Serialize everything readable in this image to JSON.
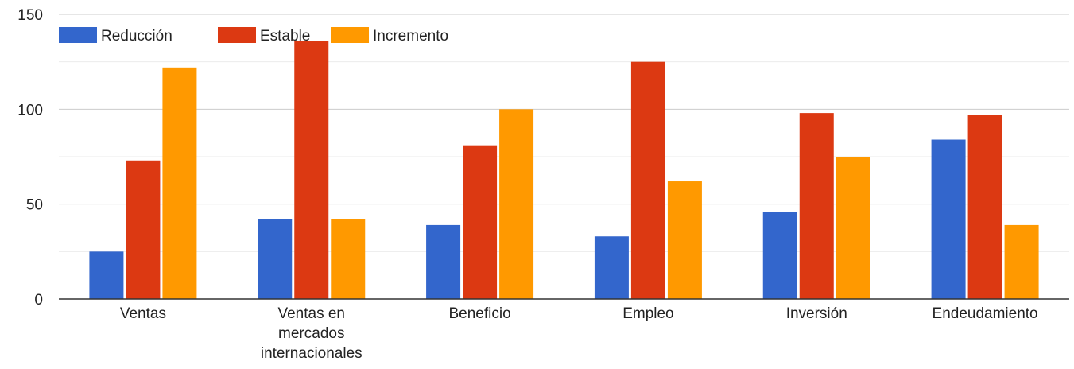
{
  "chart_data": {
    "type": "bar",
    "categories": [
      [
        "Ventas"
      ],
      [
        "Ventas en",
        "mercados",
        "internacionales"
      ],
      [
        "Beneficio"
      ],
      [
        "Empleo"
      ],
      [
        "Inversión"
      ],
      [
        "Endeudamiento"
      ]
    ],
    "series": [
      {
        "name": "Reducción",
        "color": "#3366cc",
        "values": [
          25,
          42,
          39,
          33,
          46,
          84
        ]
      },
      {
        "name": "Estable",
        "color": "#dc3912",
        "values": [
          73,
          136,
          81,
          125,
          98,
          97
        ]
      },
      {
        "name": "Incremento",
        "color": "#ff9900",
        "values": [
          122,
          42,
          100,
          62,
          75,
          39
        ]
      }
    ],
    "ylim": [
      0,
      150
    ],
    "yticks": [
      0,
      50,
      100,
      150
    ],
    "minor_gridlines": [
      25,
      75,
      125
    ],
    "grid": true,
    "legend_position": "top-left"
  }
}
